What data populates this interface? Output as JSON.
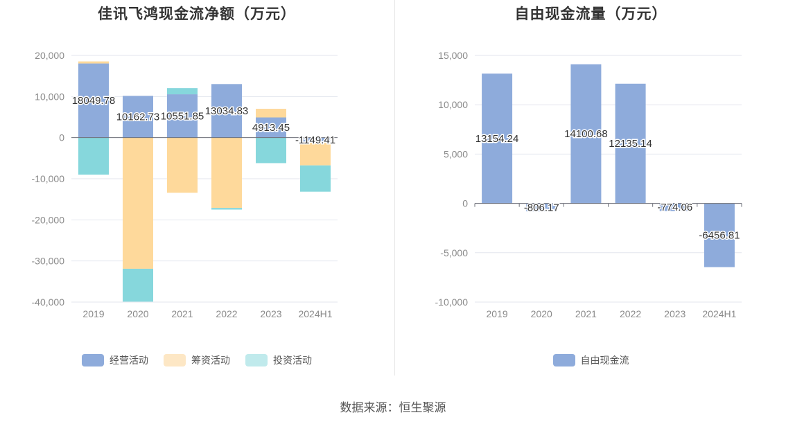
{
  "source": "数据来源：恒生聚源",
  "chart_data": [
    {
      "type": "bar",
      "stacked": true,
      "title": "佳讯飞鸿现金流净额（万元）",
      "categories": [
        "2019",
        "2020",
        "2021",
        "2022",
        "2023",
        "2024H1"
      ],
      "ylim": [
        -40000,
        20000
      ],
      "yticks": [
        "20,000",
        "10,000",
        "0",
        "-10,000",
        "-20,000",
        "-30,000",
        "-40,000"
      ],
      "grid": true,
      "legend_position": "bottom",
      "series": [
        {
          "name": "经营活动",
          "color": "#8eabdb",
          "values": [
            18049.78,
            10162.73,
            10551.85,
            13034.83,
            4913.45,
            -1149.41
          ]
        },
        {
          "name": "筹资活动",
          "color": "#fed99b",
          "values": [
            500,
            -31900,
            -13400,
            -17100,
            2100,
            -5600
          ]
        },
        {
          "name": "投资活动",
          "color": "#86d7dc",
          "values": [
            -9000,
            -8000,
            1500,
            -400,
            -6200,
            -6400
          ]
        }
      ],
      "data_labels": [
        "18049.78",
        "10162.73",
        "10551.85",
        "13034.83",
        "4913.45",
        "-1149.41"
      ]
    },
    {
      "type": "bar",
      "title": "自由现金流量（万元）",
      "categories": [
        "2019",
        "2020",
        "2021",
        "2022",
        "2023",
        "2024H1"
      ],
      "ylim": [
        -10000,
        15000
      ],
      "yticks": [
        "15,000",
        "10,000",
        "5,000",
        "0",
        "-5,000",
        "-10,000"
      ],
      "grid": true,
      "legend_position": "bottom",
      "series": [
        {
          "name": "自由现金流",
          "color": "#8eabdb",
          "values": [
            13154.24,
            -806.17,
            14100.68,
            12135.14,
            -774.06,
            -6456.81
          ]
        }
      ],
      "data_labels": [
        "13154.24",
        "-806.17",
        "14100.68",
        "12135.14",
        "-774.06",
        "-6456.81"
      ]
    }
  ]
}
